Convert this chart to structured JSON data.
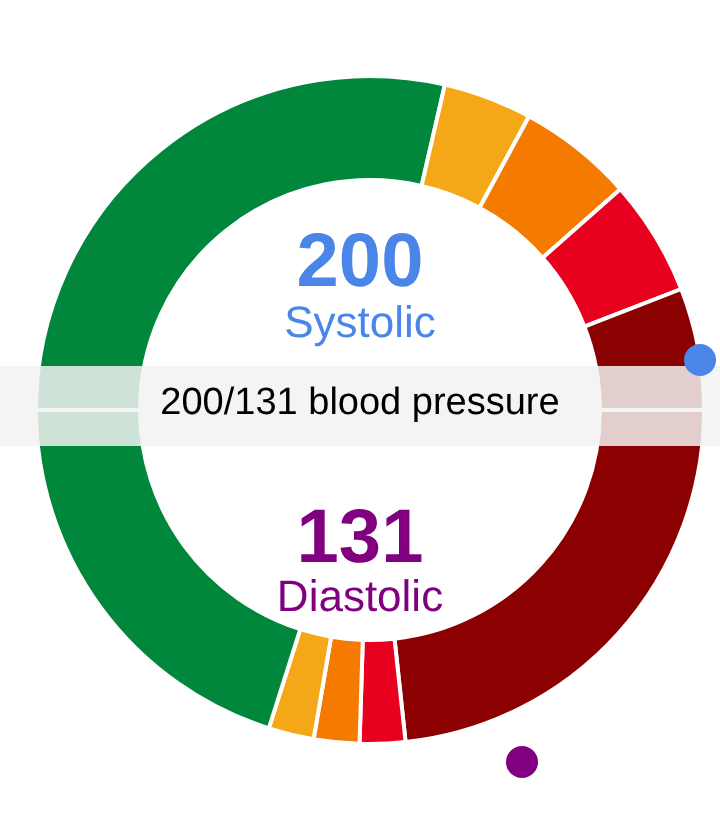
{
  "chart_data": {
    "type": "donut",
    "title": "200/131 blood pressure",
    "annotations": [
      "200",
      "Systolic",
      "131",
      "Diastolic"
    ],
    "categories": [
      null,
      null,
      null,
      null,
      null,
      null,
      null,
      null,
      null,
      null
    ],
    "values": [
      23.3,
      2.2,
      2.2,
      2.2,
      20.1,
      28.6,
      4.3,
      5.6,
      5.6,
      5.9
    ],
    "colors": [
      "#8b0000",
      "#e8001f",
      "#f47a00",
      "#f5a817",
      "#00873c",
      "#00873c",
      "#f5a817",
      "#f47a00",
      "#e8001f",
      "#8b0000"
    ]
  }
}
